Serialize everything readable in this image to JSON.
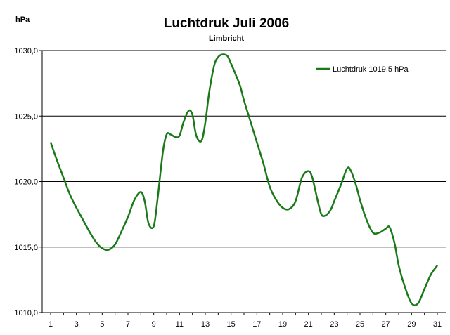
{
  "chart_data": {
    "type": "line",
    "title": "Luchtdruk Juli 2006",
    "subtitle": "Limbricht",
    "ylabel": "hPa",
    "xlabel": "",
    "ylim": [
      1010,
      1030
    ],
    "xlim": [
      1,
      31
    ],
    "y_ticks": [
      "1010,0",
      "1015,0",
      "1020,0",
      "1025,0",
      "1030,0"
    ],
    "y_tick_values": [
      1010,
      1015,
      1020,
      1025,
      1030
    ],
    "x_ticks": [
      "1",
      "3",
      "5",
      "7",
      "9",
      "11",
      "13",
      "15",
      "17",
      "19",
      "21",
      "23",
      "25",
      "27",
      "29",
      "31"
    ],
    "x_tick_values": [
      1,
      3,
      5,
      7,
      9,
      11,
      13,
      15,
      17,
      19,
      21,
      23,
      25,
      27,
      29,
      31
    ],
    "grid": "horizontal",
    "legend_position": "top-right",
    "series": [
      {
        "name": "Luchtdruk 1019,5 hPa",
        "color": "#1a7a1a",
        "x": [
          1,
          1.5,
          2,
          2.5,
          3,
          3.5,
          4,
          4.5,
          5,
          5.5,
          6,
          6.5,
          7,
          7.5,
          8,
          8.3,
          8.6,
          9,
          9.3,
          9.7,
          10,
          10.3,
          10.7,
          11,
          11.3,
          11.7,
          12,
          12.3,
          12.7,
          13,
          13.3,
          13.7,
          14,
          14.3,
          14.7,
          15,
          15.3,
          15.7,
          16,
          16.5,
          17,
          17.5,
          18,
          18.5,
          19,
          19.5,
          20,
          20.5,
          21,
          21.3,
          21.7,
          22,
          22.3,
          22.7,
          23,
          23.5,
          24,
          24.3,
          24.7,
          25,
          25.5,
          26,
          26.5,
          27,
          27.3,
          27.7,
          28,
          28.5,
          29,
          29.5,
          30,
          30.5,
          31
        ],
        "values": [
          1023.0,
          1021.6,
          1020.3,
          1019.0,
          1018.0,
          1017.1,
          1016.2,
          1015.4,
          1014.9,
          1014.8,
          1015.2,
          1016.2,
          1017.3,
          1018.6,
          1019.2,
          1018.5,
          1016.8,
          1016.6,
          1018.7,
          1022.2,
          1023.6,
          1023.6,
          1023.4,
          1023.5,
          1024.5,
          1025.4,
          1025.1,
          1023.5,
          1023.1,
          1024.5,
          1026.8,
          1028.9,
          1029.5,
          1029.7,
          1029.6,
          1029.0,
          1028.3,
          1027.3,
          1026.2,
          1024.6,
          1023.0,
          1021.4,
          1019.6,
          1018.6,
          1018.0,
          1017.9,
          1018.5,
          1020.3,
          1020.8,
          1020.3,
          1018.6,
          1017.5,
          1017.4,
          1017.8,
          1018.5,
          1019.7,
          1021.0,
          1020.8,
          1019.7,
          1018.6,
          1017.1,
          1016.1,
          1016.1,
          1016.4,
          1016.5,
          1015.2,
          1013.6,
          1011.9,
          1010.7,
          1010.7,
          1011.8,
          1012.9,
          1013.6
        ]
      }
    ]
  }
}
